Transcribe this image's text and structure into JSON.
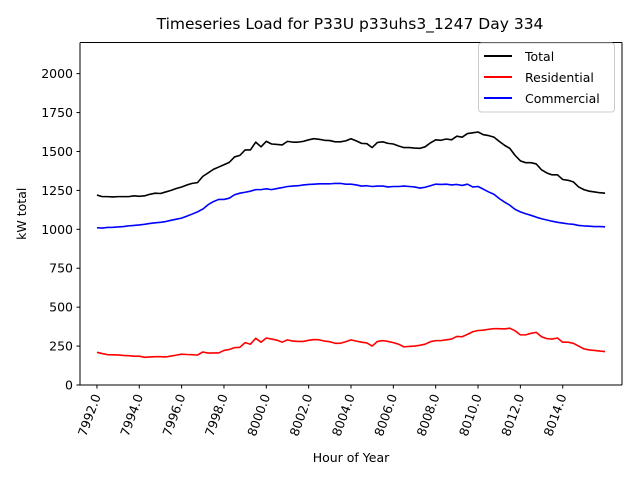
{
  "chart_data": {
    "type": "line",
    "title": "Timeseries Load for P33U p33uhs3_1247  Day 334",
    "xlabel": "Hour of Year",
    "ylabel": "kW total",
    "xlim": [
      7991.2,
      8016.8
    ],
    "ylim": [
      0,
      2200
    ],
    "x_ticks": [
      7992,
      7994,
      7996,
      7998,
      8000,
      8002,
      8004,
      8006,
      8008,
      8010,
      8012,
      8014
    ],
    "x_tick_labels": [
      "7992.0",
      "7994.0",
      "7996.0",
      "7998.0",
      "8000.0",
      "8002.0",
      "8004.0",
      "8006.0",
      "8008.0",
      "8010.0",
      "8012.0",
      "8014.0"
    ],
    "y_ticks": [
      0,
      250,
      500,
      750,
      1000,
      1250,
      1500,
      1750,
      2000
    ],
    "y_tick_labels": [
      "0",
      "250",
      "500",
      "750",
      "1000",
      "1250",
      "1500",
      "1750",
      "2000"
    ],
    "grid": false,
    "legend_position": "top-right",
    "series": [
      {
        "name": "Total",
        "color": "#000000",
        "points": [
          [
            7992.0,
            1220
          ],
          [
            7992.25,
            1210
          ],
          [
            7992.5,
            1210
          ],
          [
            7992.75,
            1208
          ],
          [
            7993.0,
            1210
          ],
          [
            7993.25,
            1210
          ],
          [
            7993.5,
            1210
          ],
          [
            7993.75,
            1215
          ],
          [
            7994.0,
            1212
          ],
          [
            7994.25,
            1215
          ],
          [
            7994.5,
            1225
          ],
          [
            7994.75,
            1232
          ],
          [
            7995.0,
            1230
          ],
          [
            7995.25,
            1240
          ],
          [
            7995.5,
            1250
          ],
          [
            7995.75,
            1262
          ],
          [
            7996.0,
            1272
          ],
          [
            7996.25,
            1285
          ],
          [
            7996.5,
            1295
          ],
          [
            7996.75,
            1300
          ],
          [
            7997.0,
            1340
          ],
          [
            7997.25,
            1362
          ],
          [
            7997.5,
            1385
          ],
          [
            7997.75,
            1400
          ],
          [
            7998.0,
            1415
          ],
          [
            7998.25,
            1430
          ],
          [
            7998.5,
            1465
          ],
          [
            7998.75,
            1475
          ],
          [
            7999.0,
            1510
          ],
          [
            7999.25,
            1510
          ],
          [
            7999.5,
            1560
          ],
          [
            7999.75,
            1530
          ],
          [
            8000.0,
            1565
          ],
          [
            8000.25,
            1548
          ],
          [
            8000.5,
            1545
          ],
          [
            8000.75,
            1542
          ],
          [
            8001.0,
            1565
          ],
          [
            8001.25,
            1560
          ],
          [
            8001.5,
            1560
          ],
          [
            8001.75,
            1565
          ],
          [
            8002.0,
            1575
          ],
          [
            8002.25,
            1582
          ],
          [
            8002.5,
            1578
          ],
          [
            8002.75,
            1572
          ],
          [
            8003.0,
            1570
          ],
          [
            8003.25,
            1562
          ],
          [
            8003.5,
            1562
          ],
          [
            8003.75,
            1568
          ],
          [
            8004.0,
            1582
          ],
          [
            8004.25,
            1568
          ],
          [
            8004.5,
            1552
          ],
          [
            8004.75,
            1550
          ],
          [
            8005.0,
            1525
          ],
          [
            8005.25,
            1558
          ],
          [
            8005.5,
            1562
          ],
          [
            8005.75,
            1552
          ],
          [
            8006.0,
            1548
          ],
          [
            8006.25,
            1535
          ],
          [
            8006.5,
            1525
          ],
          [
            8006.75,
            1525
          ],
          [
            8007.0,
            1522
          ],
          [
            8007.25,
            1520
          ],
          [
            8007.5,
            1530
          ],
          [
            8007.75,
            1555
          ],
          [
            8008.0,
            1575
          ],
          [
            8008.25,
            1572
          ],
          [
            8008.5,
            1580
          ],
          [
            8008.75,
            1575
          ],
          [
            8009.0,
            1598
          ],
          [
            8009.25,
            1592
          ],
          [
            8009.5,
            1615
          ],
          [
            8009.75,
            1620
          ],
          [
            8010.0,
            1625
          ],
          [
            8010.25,
            1608
          ],
          [
            8010.5,
            1602
          ],
          [
            8010.75,
            1592
          ],
          [
            8011.0,
            1565
          ],
          [
            8011.25,
            1540
          ],
          [
            8011.5,
            1520
          ],
          [
            8011.75,
            1475
          ],
          [
            8012.0,
            1440
          ],
          [
            8012.25,
            1428
          ],
          [
            8012.5,
            1428
          ],
          [
            8012.75,
            1420
          ],
          [
            8013.0,
            1382
          ],
          [
            8013.25,
            1362
          ],
          [
            8013.5,
            1350
          ],
          [
            8013.75,
            1350
          ],
          [
            8014.0,
            1320
          ],
          [
            8014.25,
            1315
          ],
          [
            8014.5,
            1305
          ],
          [
            8014.75,
            1272
          ],
          [
            8015.0,
            1255
          ],
          [
            8015.25,
            1245
          ],
          [
            8015.5,
            1240
          ],
          [
            8015.75,
            1235
          ],
          [
            8016.0,
            1232
          ]
        ]
      },
      {
        "name": "Residential",
        "color": "#ff0000",
        "points": [
          [
            7992.0,
            210
          ],
          [
            7992.25,
            202
          ],
          [
            7992.5,
            195
          ],
          [
            7992.75,
            194
          ],
          [
            7993.0,
            193
          ],
          [
            7993.25,
            190
          ],
          [
            7993.5,
            188
          ],
          [
            7993.75,
            185
          ],
          [
            7994.0,
            185
          ],
          [
            7994.25,
            178
          ],
          [
            7994.5,
            180
          ],
          [
            7994.75,
            182
          ],
          [
            7995.0,
            182
          ],
          [
            7995.25,
            180
          ],
          [
            7995.5,
            186
          ],
          [
            7995.75,
            192
          ],
          [
            7996.0,
            198
          ],
          [
            7996.25,
            196
          ],
          [
            7996.5,
            195
          ],
          [
            7996.75,
            192
          ],
          [
            7997.0,
            212
          ],
          [
            7997.25,
            205
          ],
          [
            7997.5,
            206
          ],
          [
            7997.75,
            206
          ],
          [
            7998.0,
            222
          ],
          [
            7998.25,
            228
          ],
          [
            7998.5,
            240
          ],
          [
            7998.75,
            242
          ],
          [
            7999.0,
            272
          ],
          [
            7999.25,
            262
          ],
          [
            7999.5,
            300
          ],
          [
            7999.75,
            275
          ],
          [
            8000.0,
            302
          ],
          [
            8000.25,
            295
          ],
          [
            8000.5,
            288
          ],
          [
            8000.75,
            275
          ],
          [
            8001.0,
            290
          ],
          [
            8001.25,
            282
          ],
          [
            8001.5,
            280
          ],
          [
            8001.75,
            280
          ],
          [
            8002.0,
            287
          ],
          [
            8002.25,
            292
          ],
          [
            8002.5,
            290
          ],
          [
            8002.75,
            282
          ],
          [
            8003.0,
            278
          ],
          [
            8003.25,
            268
          ],
          [
            8003.5,
            268
          ],
          [
            8003.75,
            278
          ],
          [
            8004.0,
            290
          ],
          [
            8004.25,
            282
          ],
          [
            8004.5,
            275
          ],
          [
            8004.75,
            270
          ],
          [
            8005.0,
            250
          ],
          [
            8005.25,
            280
          ],
          [
            8005.5,
            285
          ],
          [
            8005.75,
            280
          ],
          [
            8006.0,
            272
          ],
          [
            8006.25,
            262
          ],
          [
            8006.5,
            245
          ],
          [
            8006.75,
            248
          ],
          [
            8007.0,
            250
          ],
          [
            8007.25,
            255
          ],
          [
            8007.5,
            262
          ],
          [
            8007.75,
            278
          ],
          [
            8008.0,
            285
          ],
          [
            8008.25,
            285
          ],
          [
            8008.5,
            290
          ],
          [
            8008.75,
            295
          ],
          [
            8009.0,
            312
          ],
          [
            8009.25,
            310
          ],
          [
            8009.5,
            325
          ],
          [
            8009.75,
            342
          ],
          [
            8010.0,
            350
          ],
          [
            8010.25,
            352
          ],
          [
            8010.5,
            358
          ],
          [
            8010.75,
            362
          ],
          [
            8011.0,
            362
          ],
          [
            8011.25,
            360
          ],
          [
            8011.5,
            365
          ],
          [
            8011.75,
            348
          ],
          [
            8012.0,
            322
          ],
          [
            8012.25,
            322
          ],
          [
            8012.5,
            332
          ],
          [
            8012.75,
            338
          ],
          [
            8013.0,
            310
          ],
          [
            8013.25,
            298
          ],
          [
            8013.5,
            295
          ],
          [
            8013.75,
            302
          ],
          [
            8014.0,
            275
          ],
          [
            8014.25,
            275
          ],
          [
            8014.5,
            268
          ],
          [
            8014.75,
            250
          ],
          [
            8015.0,
            232
          ],
          [
            8015.25,
            225
          ],
          [
            8015.5,
            222
          ],
          [
            8015.75,
            218
          ],
          [
            8016.0,
            215
          ]
        ]
      },
      {
        "name": "Commercial",
        "color": "#0000ff",
        "points": [
          [
            7992.0,
            1010
          ],
          [
            7992.25,
            1008
          ],
          [
            7992.5,
            1012
          ],
          [
            7992.75,
            1013
          ],
          [
            7993.0,
            1015
          ],
          [
            7993.25,
            1018
          ],
          [
            7993.5,
            1022
          ],
          [
            7993.75,
            1025
          ],
          [
            7994.0,
            1028
          ],
          [
            7994.25,
            1032
          ],
          [
            7994.5,
            1038
          ],
          [
            7994.75,
            1042
          ],
          [
            7995.0,
            1045
          ],
          [
            7995.25,
            1050
          ],
          [
            7995.5,
            1058
          ],
          [
            7995.75,
            1065
          ],
          [
            7996.0,
            1072
          ],
          [
            7996.25,
            1085
          ],
          [
            7996.5,
            1098
          ],
          [
            7996.75,
            1112
          ],
          [
            7997.0,
            1130
          ],
          [
            7997.25,
            1158
          ],
          [
            7997.5,
            1178
          ],
          [
            7997.75,
            1192
          ],
          [
            7998.0,
            1192
          ],
          [
            7998.25,
            1200
          ],
          [
            7998.5,
            1222
          ],
          [
            7998.75,
            1232
          ],
          [
            7999.0,
            1238
          ],
          [
            7999.25,
            1245
          ],
          [
            7999.5,
            1255
          ],
          [
            7999.75,
            1255
          ],
          [
            8000.0,
            1260
          ],
          [
            8000.25,
            1255
          ],
          [
            8000.5,
            1262
          ],
          [
            8000.75,
            1268
          ],
          [
            8001.0,
            1275
          ],
          [
            8001.25,
            1278
          ],
          [
            8001.5,
            1280
          ],
          [
            8001.75,
            1285
          ],
          [
            8002.0,
            1288
          ],
          [
            8002.25,
            1290
          ],
          [
            8002.5,
            1292
          ],
          [
            8002.75,
            1292
          ],
          [
            8003.0,
            1292
          ],
          [
            8003.25,
            1295
          ],
          [
            8003.5,
            1295
          ],
          [
            8003.75,
            1290
          ],
          [
            8004.0,
            1290
          ],
          [
            8004.25,
            1285
          ],
          [
            8004.5,
            1278
          ],
          [
            8004.75,
            1280
          ],
          [
            8005.0,
            1275
          ],
          [
            8005.25,
            1278
          ],
          [
            8005.5,
            1278
          ],
          [
            8005.75,
            1272
          ],
          [
            8006.0,
            1275
          ],
          [
            8006.25,
            1275
          ],
          [
            8006.5,
            1278
          ],
          [
            8006.75,
            1275
          ],
          [
            8007.0,
            1272
          ],
          [
            8007.25,
            1265
          ],
          [
            8007.5,
            1270
          ],
          [
            8007.75,
            1280
          ],
          [
            8008.0,
            1290
          ],
          [
            8008.25,
            1288
          ],
          [
            8008.5,
            1290
          ],
          [
            8008.75,
            1285
          ],
          [
            8009.0,
            1288
          ],
          [
            8009.25,
            1282
          ],
          [
            8009.5,
            1290
          ],
          [
            8009.75,
            1272
          ],
          [
            8010.0,
            1275
          ],
          [
            8010.25,
            1258
          ],
          [
            8010.5,
            1240
          ],
          [
            8010.75,
            1225
          ],
          [
            8011.0,
            1198
          ],
          [
            8011.25,
            1175
          ],
          [
            8011.5,
            1155
          ],
          [
            8011.75,
            1128
          ],
          [
            8012.0,
            1112
          ],
          [
            8012.25,
            1100
          ],
          [
            8012.5,
            1090
          ],
          [
            8012.75,
            1078
          ],
          [
            8013.0,
            1068
          ],
          [
            8013.25,
            1060
          ],
          [
            8013.5,
            1052
          ],
          [
            8013.75,
            1045
          ],
          [
            8014.0,
            1040
          ],
          [
            8014.25,
            1035
          ],
          [
            8014.5,
            1032
          ],
          [
            8014.75,
            1025
          ],
          [
            8015.0,
            1022
          ],
          [
            8015.25,
            1020
          ],
          [
            8015.5,
            1018
          ],
          [
            8015.75,
            1018
          ],
          [
            8016.0,
            1016
          ]
        ]
      }
    ]
  }
}
